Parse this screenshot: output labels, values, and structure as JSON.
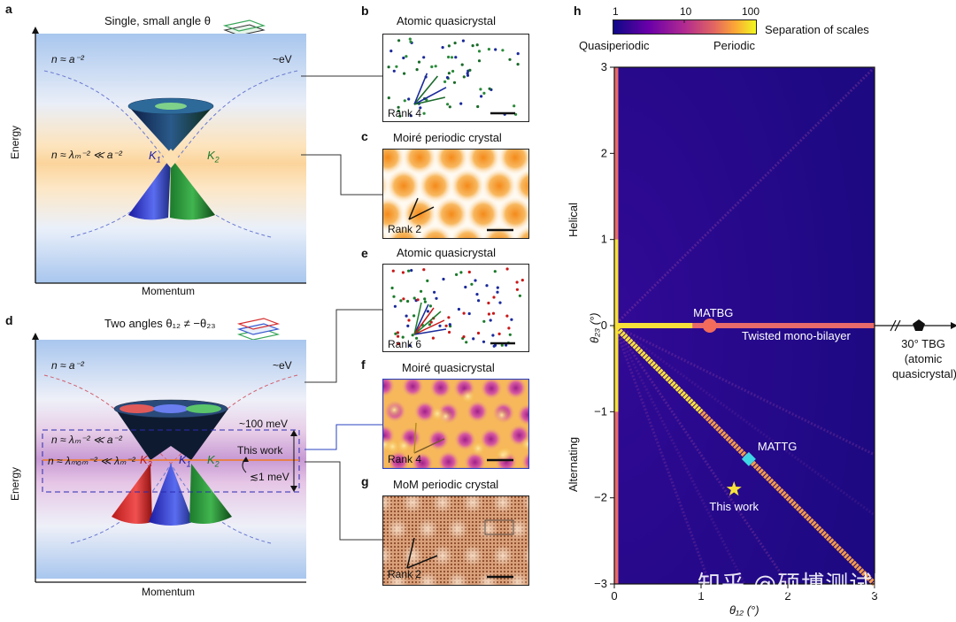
{
  "panels": {
    "a": {
      "letter": "a",
      "title": "Single, small angle θ",
      "n_top": "n ≈ a⁻²",
      "n_mid": "n ≈ λₘ⁻² ≪ a⁻²",
      "ev": "~eV",
      "k1": "K",
      "k1_sub": "1",
      "k2": "K",
      "k2_sub": "2",
      "ylabel": "Energy",
      "xlabel": "Momentum"
    },
    "b": {
      "letter": "b",
      "title": "Atomic quasicrystal",
      "rank": "Rank 4"
    },
    "c": {
      "letter": "c",
      "title": "Moiré periodic crystal",
      "rank": "Rank 2"
    },
    "d": {
      "letter": "d",
      "title": "Two angles θ₁₂ ≠ −θ₂₃",
      "n_top": "n ≈ a⁻²",
      "n_mid": "n ≈ λₘ⁻² ≪ a⁻²",
      "n_low": "n ≈ λₘₒₘ⁻² ≪ λₘ⁻²",
      "ev": "~eV",
      "mev100": "~100 meV",
      "this_work": "This work",
      "mev1": "≲1 meV",
      "k3": "K",
      "k3_sub": "3",
      "k1": "K",
      "k1_sub": "1",
      "k2": "K",
      "k2_sub": "2",
      "ylabel": "Energy",
      "xlabel": "Momentum"
    },
    "e": {
      "letter": "e",
      "title": "Atomic quasicrystal",
      "rank": "Rank 6"
    },
    "f": {
      "letter": "f",
      "title": "Moiré quasicrystal",
      "rank": "Rank 4"
    },
    "g": {
      "letter": "g",
      "title": "MoM periodic crystal",
      "rank": "Rank 2"
    },
    "h": {
      "letter": "h",
      "colorbar_title": "Separation of scales",
      "colorbar_ticks": [
        "1",
        "10",
        "100"
      ],
      "left_label": "Quasiperiodic",
      "right_label": "Periodic",
      "helical": "Helical",
      "alternating": "Alternating",
      "ylabel": "θ₂₃ (°)",
      "xlabel": "θ₁₂ (°)",
      "mono_bilayer": "Twisted mono-bilayer",
      "tbg30_line1": "30° TBG",
      "tbg30_line2": "(atomic",
      "tbg30_line3": "quasicrystal)"
    }
  },
  "chart_data": {
    "type": "heatmap",
    "xlabel": "θ₁₂ (°)",
    "ylabel": "θ₂₃ (°)",
    "xlim": [
      0,
      3
    ],
    "ylim": [
      -3,
      3
    ],
    "x_ticks": [
      "0",
      "1",
      "2",
      "3"
    ],
    "y_ticks": [
      "3",
      "2",
      "1",
      "0",
      "−1",
      "−2",
      "−3"
    ],
    "colorscale": "plasma-like",
    "points": [
      {
        "label": "MATBG",
        "x": 1.1,
        "y": 0.0,
        "marker": "circle",
        "color": "#f26b5b"
      },
      {
        "label": "MATTG",
        "x": 1.55,
        "y": -1.55,
        "marker": "diamond",
        "color": "#3fd6e6"
      },
      {
        "label": "This work",
        "x": 1.38,
        "y": -1.9,
        "marker": "star",
        "color": "#f7e23a"
      }
    ]
  },
  "watermark": "知乎 @硕博测试圈"
}
